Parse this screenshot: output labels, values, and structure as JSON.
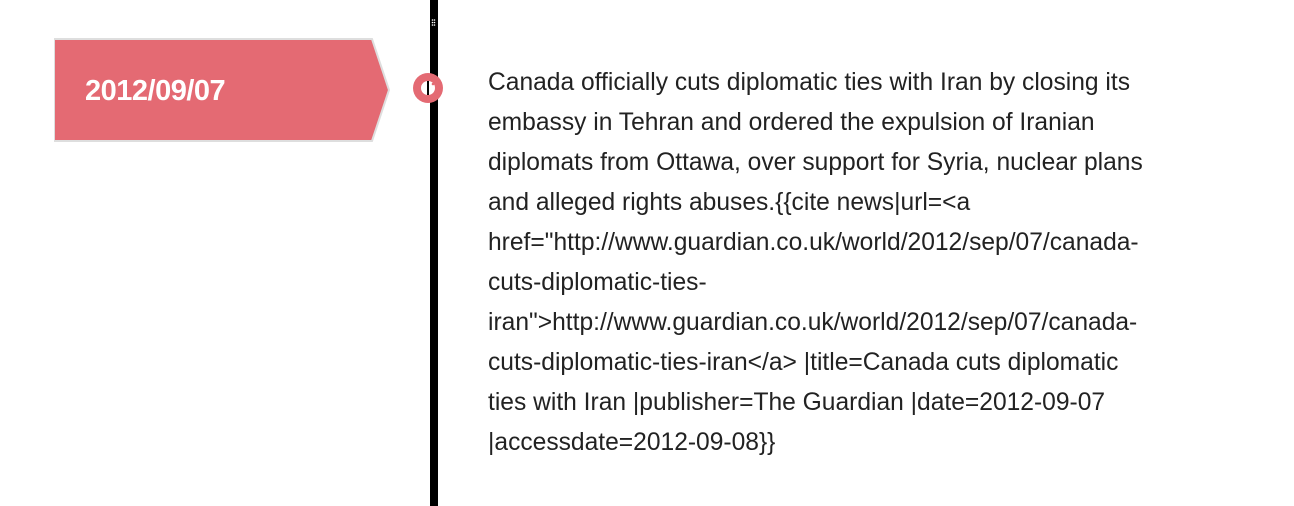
{
  "timeline": {
    "accent_color": "#e46a73",
    "line_color": "#000000",
    "entry": {
      "date": "2012/09/07",
      "text": "Canada officially cuts diplomatic ties with Iran by closing its\nembassy in Tehran and ordered the expulsion of Iranian\ndiplomats from Ottawa, over support for Syria, nuclear plans\nand alleged rights abuses.{{cite news|url=<a\nhref=\"http://www.guardian.co.uk/world/2012/sep/07/canada-\ncuts-diplomatic-ties-\niran\">http://www.guardian.co.uk/world/2012/sep/07/canada-\ncuts-diplomatic-ties-iran</a> |title=Canada cuts diplomatic\nties with Iran |publisher=The Guardian |date=2012-09-07\n|accessdate=2012-09-08}}"
    }
  }
}
